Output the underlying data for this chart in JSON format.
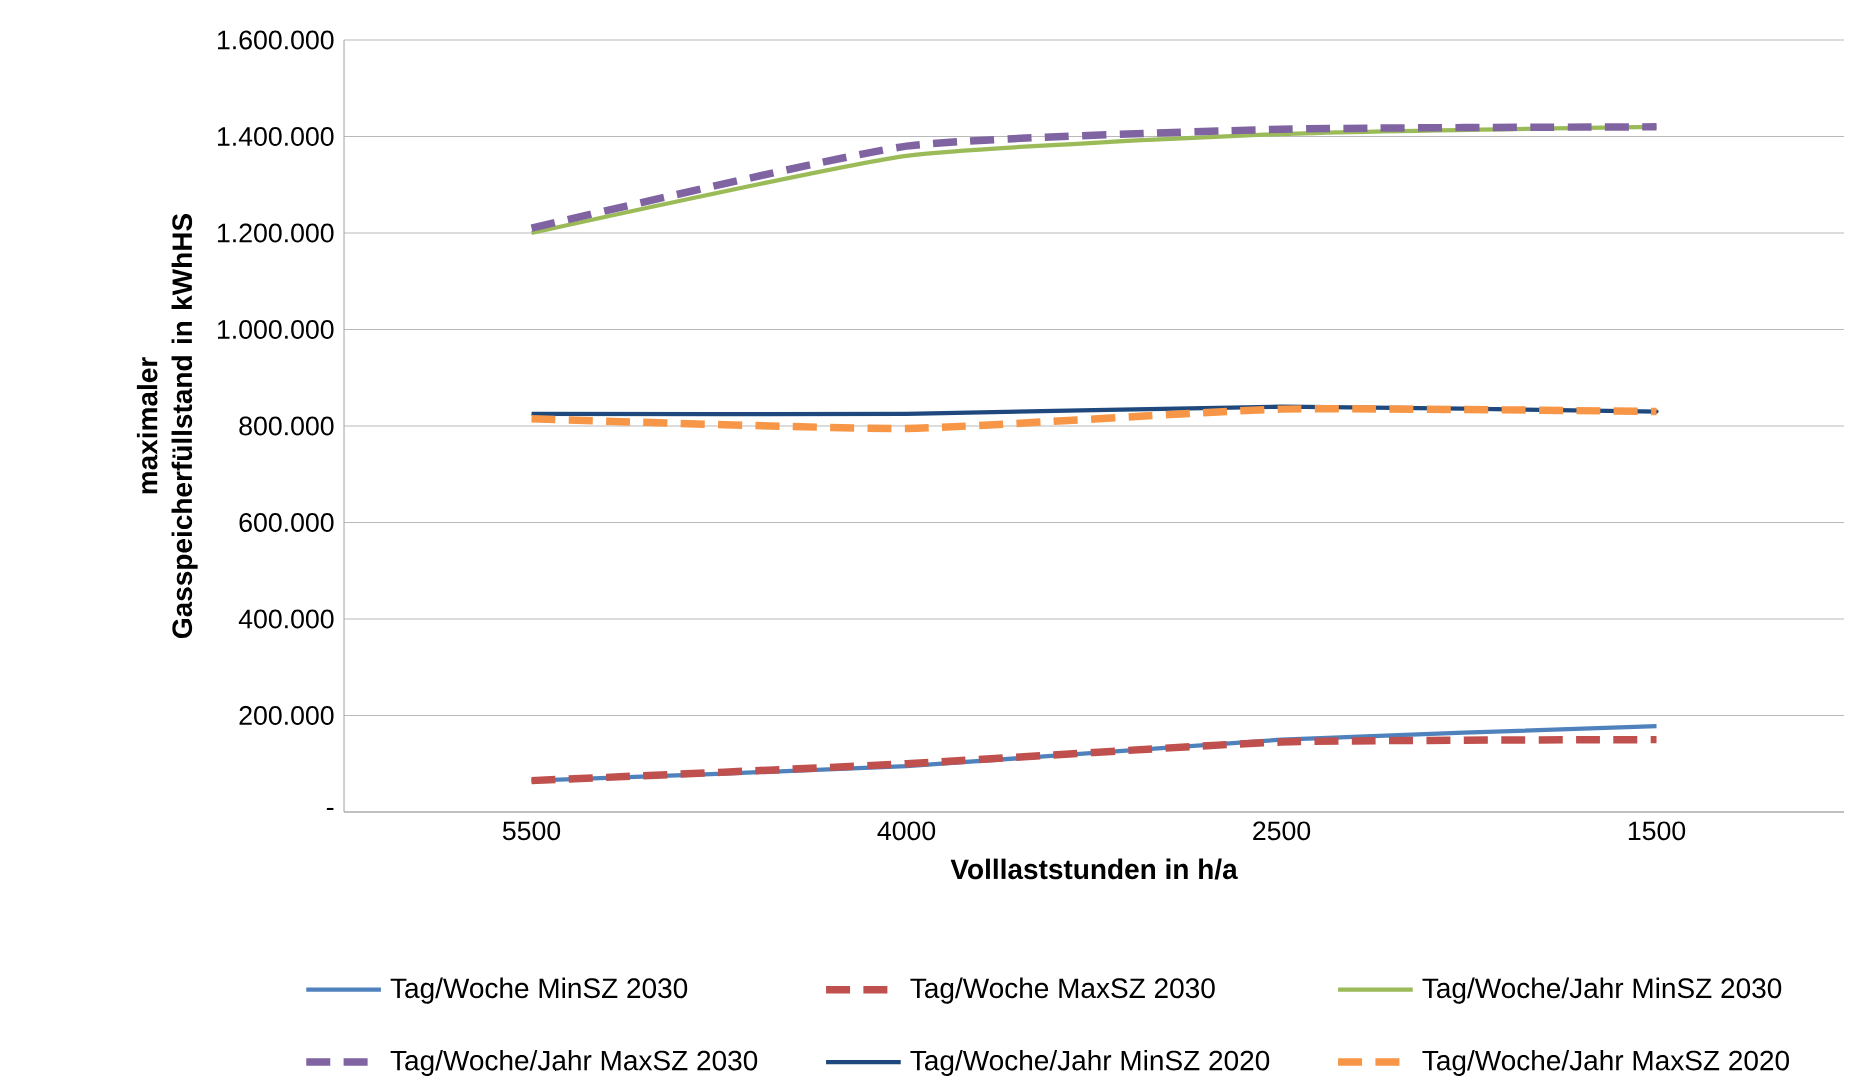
{
  "chart_data": {
    "type": "line",
    "xlabel": "Volllaststunden  in h/a",
    "ylabel": "maximaler Gasspeicherfüllstand in kWhHS",
    "categories": [
      "5500",
      "4000",
      "2500",
      "1500"
    ],
    "ylim": [
      0,
      1600000
    ],
    "yticks": [
      {
        "value": 0,
        "label": "-"
      },
      {
        "value": 200000,
        "label": "200.000"
      },
      {
        "value": 400000,
        "label": "400.000"
      },
      {
        "value": 600000,
        "label": "600.000"
      },
      {
        "value": 800000,
        "label": "800.000"
      },
      {
        "value": 1000000,
        "label": "1.000.000"
      },
      {
        "value": 1200000,
        "label": "1.200.000"
      },
      {
        "value": 1400000,
        "label": "1.400.000"
      },
      {
        "value": 1600000,
        "label": "1.600.000"
      }
    ],
    "grid": "y",
    "legend": "bottom",
    "series": [
      {
        "name": "Tag/Woche MinSZ 2030",
        "color": "#4f81bd",
        "line_style": "solid",
        "values": [
          65000,
          95000,
          150000,
          178000
        ]
      },
      {
        "name": "Tag/Woche MaxSZ 2030",
        "color": "#c0504d",
        "line_style": "dashed",
        "values": [
          65000,
          100000,
          145000,
          150000
        ]
      },
      {
        "name": "Tag/Woche/Jahr MinSZ 2030",
        "color": "#9bbb59",
        "line_style": "solid",
        "values": [
          1200000,
          1360000,
          1405000,
          1420000
        ]
      },
      {
        "name": "Tag/Woche/Jahr MaxSZ 2030",
        "color": "#8064a2",
        "line_style": "dashed",
        "values": [
          1210000,
          1380000,
          1415000,
          1420000
        ]
      },
      {
        "name": "Tag/Woche/Jahr MinSZ 2020",
        "color": "#1f497d",
        "line_style": "solid",
        "values": [
          825000,
          825000,
          840000,
          830000
        ]
      },
      {
        "name": "Tag/Woche/Jahr MaxSZ 2020",
        "color": "#f79646",
        "line_style": "dashed",
        "values": [
          815000,
          795000,
          835000,
          830000
        ]
      }
    ]
  }
}
